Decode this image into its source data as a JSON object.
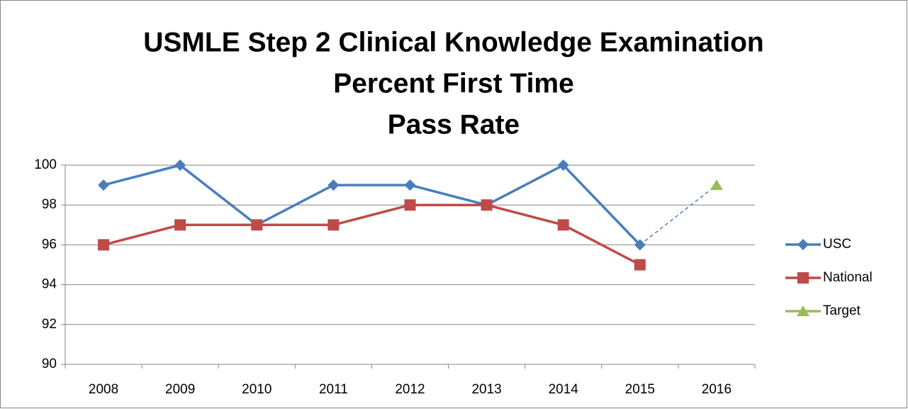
{
  "chart_data": {
    "type": "line",
    "title": [
      "USMLE Step 2 Clinical Knowledge Examination",
      "Percent First Time",
      "Pass Rate"
    ],
    "categories": [
      "2008",
      "2009",
      "2010",
      "2011",
      "2012",
      "2013",
      "2014",
      "2015",
      "2016"
    ],
    "series": [
      {
        "name": "USC",
        "color": "#4a7ebb",
        "marker": "diamond",
        "values": [
          99,
          100,
          97,
          99,
          99,
          98,
          100,
          96,
          null
        ]
      },
      {
        "name": "National",
        "color": "#be4b48",
        "marker": "square",
        "values": [
          96,
          97,
          97,
          97,
          98,
          98,
          97,
          95,
          null
        ]
      },
      {
        "name": "Target",
        "color": "#9bbb59",
        "marker": "triangle",
        "values": [
          null,
          null,
          null,
          null,
          null,
          null,
          null,
          null,
          99
        ]
      }
    ],
    "ylim": [
      90,
      100
    ],
    "yticks": [
      90,
      92,
      94,
      96,
      98,
      100
    ],
    "grid": true,
    "legend": "right"
  }
}
